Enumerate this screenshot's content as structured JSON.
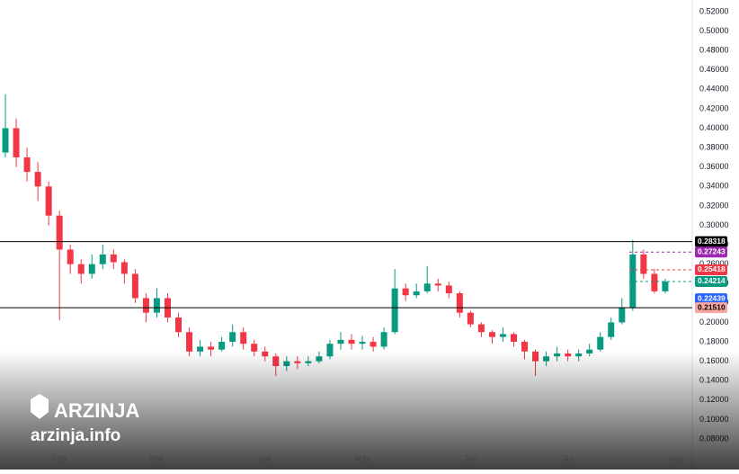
{
  "chart_data": {
    "type": "candlestick",
    "categories": [
      null,
      null,
      null,
      null,
      null,
      "Feb",
      null,
      null,
      null,
      null,
      null,
      null,
      null,
      null,
      "Mar",
      null,
      null,
      null,
      null,
      null,
      null,
      null,
      null,
      null,
      "Apr",
      null,
      null,
      null,
      null,
      null,
      null,
      null,
      null,
      "May",
      null,
      null,
      null,
      null,
      null,
      null,
      null,
      null,
      null,
      "Jun",
      null,
      null,
      null,
      null,
      null,
      null,
      null,
      null,
      "Jul",
      null,
      null,
      null,
      null,
      null,
      null,
      null,
      null,
      null,
      "Aug",
      null
    ],
    "open": [
      0.375,
      0.4,
      0.37,
      0.355,
      0.34,
      0.31,
      0.275,
      0.26,
      0.25,
      0.26,
      0.27,
      0.262,
      0.25,
      0.225,
      0.21,
      0.225,
      0.205,
      0.19,
      0.17,
      0.175,
      0.172,
      0.18,
      0.19,
      0.178,
      0.17,
      0.165,
      0.155,
      0.16,
      0.158,
      0.16,
      0.165,
      0.178,
      0.182,
      0.178,
      0.18,
      0.175,
      0.19,
      0.235,
      0.228,
      0.232,
      0.24,
      0.238,
      0.23,
      0.21,
      0.198,
      0.19,
      0.185,
      0.188,
      0.18,
      0.17,
      0.16,
      0.165,
      0.168,
      0.165,
      0.168,
      0.172,
      0.185,
      0.2,
      0.215,
      0.27,
      0.25,
      0.232,
      null,
      null
    ],
    "high": [
      0.435,
      0.41,
      0.38,
      0.365,
      0.345,
      0.315,
      0.28,
      0.265,
      0.27,
      0.28,
      0.275,
      0.265,
      0.255,
      0.23,
      0.235,
      0.23,
      0.21,
      0.195,
      0.182,
      0.18,
      0.185,
      0.198,
      0.195,
      0.182,
      0.175,
      0.168,
      0.165,
      0.165,
      0.165,
      0.17,
      0.182,
      0.19,
      0.188,
      0.186,
      0.185,
      0.195,
      0.255,
      0.24,
      0.24,
      0.258,
      0.245,
      0.242,
      0.232,
      0.212,
      0.2,
      0.192,
      0.195,
      0.19,
      0.182,
      0.172,
      0.17,
      0.175,
      0.172,
      0.172,
      0.178,
      0.19,
      0.205,
      0.225,
      0.285,
      0.275,
      0.255,
      0.245,
      null,
      null
    ],
    "low": [
      0.37,
      0.36,
      0.345,
      0.325,
      0.3,
      0.202,
      0.25,
      0.24,
      0.245,
      0.255,
      0.255,
      0.24,
      0.22,
      0.2,
      0.205,
      0.2,
      0.185,
      0.165,
      0.165,
      0.165,
      0.17,
      0.175,
      0.172,
      0.165,
      0.16,
      0.145,
      0.15,
      0.152,
      0.155,
      0.158,
      0.162,
      0.172,
      0.172,
      0.172,
      0.17,
      0.172,
      0.188,
      0.222,
      0.225,
      0.23,
      0.232,
      0.225,
      0.205,
      0.195,
      0.185,
      0.178,
      0.18,
      0.175,
      0.162,
      0.145,
      0.155,
      0.16,
      0.16,
      0.16,
      0.165,
      0.17,
      0.182,
      0.198,
      0.212,
      0.245,
      0.23,
      0.23,
      null,
      null
    ],
    "close": [
      0.4,
      0.37,
      0.355,
      0.34,
      0.31,
      0.275,
      0.26,
      0.25,
      0.26,
      0.27,
      0.262,
      0.25,
      0.225,
      0.21,
      0.225,
      0.205,
      0.19,
      0.17,
      0.175,
      0.172,
      0.18,
      0.19,
      0.178,
      0.17,
      0.165,
      0.155,
      0.16,
      0.158,
      0.16,
      0.165,
      0.178,
      0.182,
      0.178,
      0.18,
      0.175,
      0.19,
      0.235,
      0.228,
      0.232,
      0.24,
      0.238,
      0.23,
      0.21,
      0.198,
      0.19,
      0.185,
      0.188,
      0.18,
      0.17,
      0.16,
      0.165,
      0.168,
      0.165,
      0.168,
      0.172,
      0.185,
      0.2,
      0.215,
      0.27,
      0.25,
      0.232,
      0.242,
      null,
      null
    ],
    "up_color": "#089981",
    "down_color": "#f23645",
    "ylim": [
      0.08,
      0.52
    ],
    "yticks": [
      {
        "value": 0.08,
        "label": "0.08000"
      },
      {
        "value": 0.1,
        "label": "0.10000"
      },
      {
        "value": 0.12,
        "label": "0.12000"
      },
      {
        "value": 0.14,
        "label": "0.14000"
      },
      {
        "value": 0.16,
        "label": "0.16000"
      },
      {
        "value": 0.18,
        "label": "0.18000"
      },
      {
        "value": 0.2,
        "label": "0.20000"
      },
      {
        "value": 0.22,
        "label": "0.22000"
      },
      {
        "value": 0.24,
        "label": "0.24000"
      },
      {
        "value": 0.26,
        "label": "0.26000"
      },
      {
        "value": 0.28,
        "label": "0.28000"
      },
      {
        "value": 0.3,
        "label": "0.30000"
      },
      {
        "value": 0.32,
        "label": "0.32000"
      },
      {
        "value": 0.34,
        "label": "0.34000"
      },
      {
        "value": 0.36,
        "label": "0.36000"
      },
      {
        "value": 0.38,
        "label": "0.38000"
      },
      {
        "value": 0.4,
        "label": "0.40000"
      },
      {
        "value": 0.42,
        "label": "0.42000"
      },
      {
        "value": 0.44,
        "label": "0.44000"
      },
      {
        "value": 0.46,
        "label": "0.46000"
      },
      {
        "value": 0.48,
        "label": "0.48000"
      },
      {
        "value": 0.5,
        "label": "0.50000"
      },
      {
        "value": 0.52,
        "label": "0.52000"
      }
    ],
    "price_labels": [
      {
        "value": 0.28318,
        "color": "#000000",
        "line": "solid"
      },
      {
        "value": 0.27243,
        "color": "#9c27b0",
        "line": "dashed"
      },
      {
        "value": 0.25418,
        "color": "#f23645",
        "line": "dashed"
      },
      {
        "value": 0.24214,
        "color": "#089981",
        "line": "dashed"
      },
      {
        "value": 0.22439,
        "color": "#2962ff"
      },
      {
        "value": 0.2151,
        "label": "0.21510",
        "color": "#000000",
        "box_color": "#f7a8a0",
        "line": "solid"
      }
    ],
    "watermark": {
      "brand": "ARZINJA",
      "site": "arzinja.info"
    }
  }
}
